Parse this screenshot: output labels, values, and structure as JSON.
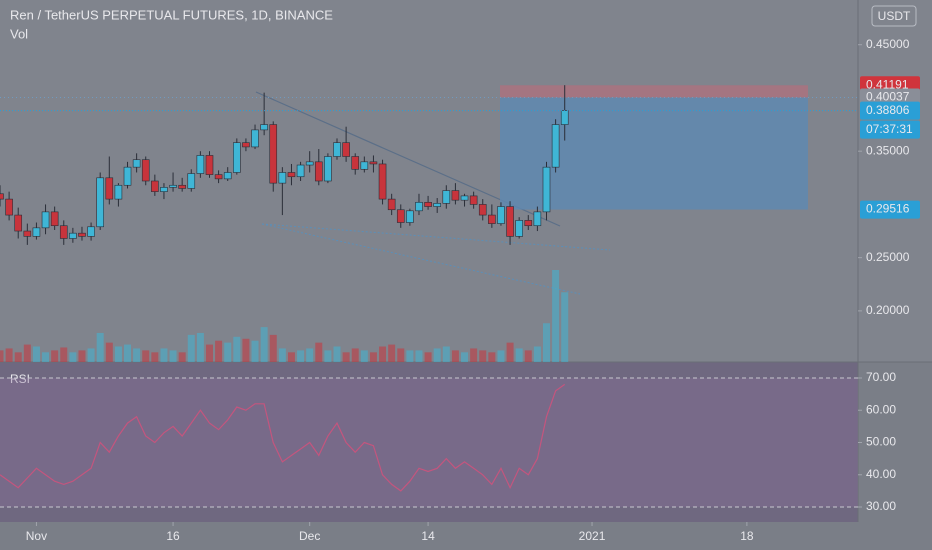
{
  "chart_data": [
    {
      "type": "candlestick",
      "title": "Ren / TetherUS PERPETUAL FUTURES, 1D, BINANCE",
      "volume_label": "Vol",
      "currency": "USDT",
      "countdown": "07:37:31",
      "xlim": [
        0,
        94.2
      ],
      "xticks": [
        {
          "value": 4,
          "label": "Nov"
        },
        {
          "value": 19,
          "label": "16"
        },
        {
          "value": 34,
          "label": "Dec"
        },
        {
          "value": 47,
          "label": "14"
        },
        {
          "value": 65,
          "label": "2021"
        },
        {
          "value": 82,
          "label": "18"
        }
      ],
      "ylim": [
        0.152,
        0.492
      ],
      "yticks": [
        {
          "value": 0.2,
          "label": "0.20000"
        },
        {
          "value": 0.25,
          "label": "0.25000"
        },
        {
          "value": 0.35,
          "label": "0.35000"
        },
        {
          "value": 0.45,
          "label": "0.45000"
        }
      ],
      "up_color": "#3fb6d6",
      "down_color": "#c8343c",
      "open": [
        0.31,
        0.305,
        0.29,
        0.275,
        0.27,
        0.278,
        0.293,
        0.28,
        0.268,
        0.273,
        0.27,
        0.279,
        0.325,
        0.305,
        0.318,
        0.335,
        0.342,
        0.322,
        0.312,
        0.316,
        0.318,
        0.315,
        0.329,
        0.346,
        0.328,
        0.324,
        0.33,
        0.358,
        0.354,
        0.37,
        0.375,
        0.32,
        0.33,
        0.326,
        0.337,
        0.34,
        0.322,
        0.345,
        0.358,
        0.345,
        0.333,
        0.34,
        0.338,
        0.305,
        0.295,
        0.283,
        0.294,
        0.302,
        0.298,
        0.301,
        0.313,
        0.304,
        0.308,
        0.3,
        0.29,
        0.282,
        0.298,
        0.27,
        0.285,
        0.28,
        0.293,
        0.335,
        0.375
      ],
      "high": [
        0.318,
        0.312,
        0.297,
        0.282,
        0.283,
        0.3,
        0.298,
        0.285,
        0.278,
        0.279,
        0.283,
        0.33,
        0.345,
        0.32,
        0.34,
        0.348,
        0.345,
        0.328,
        0.32,
        0.33,
        0.325,
        0.333,
        0.35,
        0.35,
        0.332,
        0.335,
        0.362,
        0.362,
        0.375,
        0.405,
        0.378,
        0.335,
        0.338,
        0.34,
        0.35,
        0.352,
        0.348,
        0.362,
        0.373,
        0.348,
        0.345,
        0.346,
        0.342,
        0.31,
        0.3,
        0.296,
        0.31,
        0.308,
        0.306,
        0.318,
        0.32,
        0.31,
        0.312,
        0.305,
        0.3,
        0.302,
        0.303,
        0.288,
        0.29,
        0.298,
        0.34,
        0.38,
        0.412
      ],
      "low": [
        0.298,
        0.285,
        0.268,
        0.262,
        0.267,
        0.272,
        0.276,
        0.262,
        0.264,
        0.266,
        0.266,
        0.276,
        0.3,
        0.298,
        0.315,
        0.33,
        0.318,
        0.308,
        0.305,
        0.312,
        0.312,
        0.312,
        0.325,
        0.325,
        0.32,
        0.322,
        0.328,
        0.35,
        0.352,
        0.365,
        0.312,
        0.29,
        0.318,
        0.322,
        0.33,
        0.318,
        0.32,
        0.342,
        0.34,
        0.328,
        0.33,
        0.33,
        0.3,
        0.29,
        0.278,
        0.28,
        0.29,
        0.295,
        0.292,
        0.296,
        0.3,
        0.298,
        0.296,
        0.285,
        0.278,
        0.28,
        0.262,
        0.268,
        0.276,
        0.275,
        0.285,
        0.33,
        0.36
      ],
      "close": [
        0.305,
        0.29,
        0.275,
        0.27,
        0.278,
        0.293,
        0.28,
        0.268,
        0.273,
        0.27,
        0.279,
        0.325,
        0.305,
        0.318,
        0.335,
        0.342,
        0.322,
        0.312,
        0.316,
        0.318,
        0.315,
        0.329,
        0.346,
        0.328,
        0.324,
        0.33,
        0.358,
        0.354,
        0.37,
        0.375,
        0.32,
        0.33,
        0.326,
        0.337,
        0.34,
        0.322,
        0.345,
        0.358,
        0.345,
        0.333,
        0.34,
        0.338,
        0.305,
        0.295,
        0.283,
        0.294,
        0.302,
        0.298,
        0.301,
        0.313,
        0.304,
        0.308,
        0.3,
        0.29,
        0.282,
        0.298,
        0.27,
        0.285,
        0.28,
        0.293,
        0.335,
        0.375,
        0.38806
      ],
      "volume": [
        12,
        14,
        10,
        18,
        16,
        10,
        12,
        15,
        10,
        12,
        14,
        30,
        20,
        16,
        18,
        14,
        12,
        10,
        14,
        12,
        10,
        28,
        30,
        18,
        22,
        20,
        26,
        24,
        22,
        36,
        28,
        14,
        10,
        12,
        14,
        20,
        12,
        16,
        10,
        14,
        12,
        10,
        16,
        18,
        14,
        12,
        12,
        10,
        14,
        16,
        12,
        10,
        14,
        12,
        10,
        12,
        20,
        14,
        12,
        16,
        40,
        95,
        72
      ],
      "price_labels": [
        {
          "value": 0.41191,
          "label": "0.41191",
          "color": "#d0343c"
        },
        {
          "value": 0.40037,
          "label": "0.40037",
          "color": "#8a8e98"
        },
        {
          "value": 0.38806,
          "label": "0.38806",
          "color": "#2a9fd6"
        },
        {
          "value": 0.29516,
          "label": "0.29516",
          "color": "#2a9fd6"
        }
      ]
    },
    {
      "type": "line",
      "title": "RSI",
      "color": "#c4557e",
      "ylim": [
        25.35,
        74.96
      ],
      "yticks": [
        {
          "value": 30,
          "label": "30.00"
        },
        {
          "value": 40,
          "label": "40.00"
        },
        {
          "value": 50,
          "label": "50.00"
        },
        {
          "value": 60,
          "label": "60.00"
        },
        {
          "value": 70,
          "label": "70.00"
        }
      ],
      "values": [
        40,
        38,
        36,
        39,
        42,
        40,
        38,
        37,
        38,
        40,
        42,
        50,
        47,
        52,
        56,
        58,
        52,
        50,
        53,
        55,
        52,
        56,
        60,
        56,
        54,
        57,
        61,
        60,
        62,
        62,
        50,
        44,
        46,
        48,
        50,
        46,
        52,
        56,
        50,
        47,
        50,
        49,
        40,
        37,
        35,
        38,
        42,
        41,
        42,
        45,
        42,
        44,
        42,
        40,
        37,
        42,
        36,
        42,
        40,
        45,
        58,
        66,
        68
      ]
    }
  ]
}
